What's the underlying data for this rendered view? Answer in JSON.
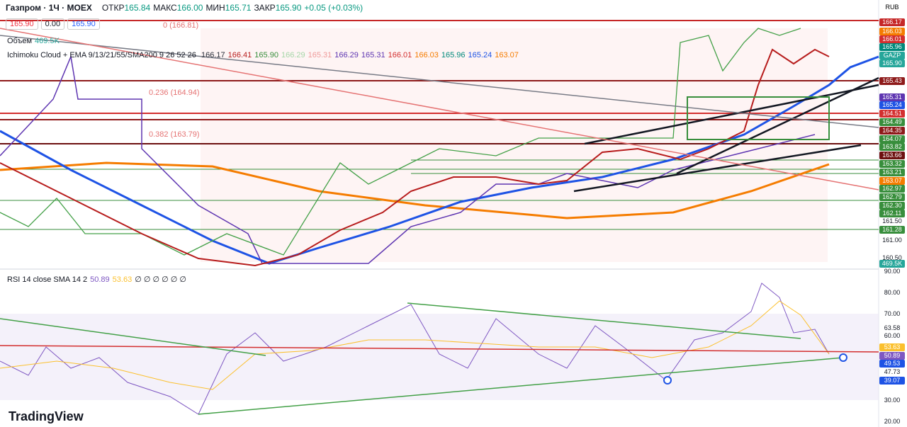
{
  "header": {
    "symbol": "Газпром · 1Ч · MOEX",
    "ohlc": [
      {
        "label": "ОТКР",
        "value": "165.84"
      },
      {
        "label": "МАКС",
        "value": "166.00"
      },
      {
        "label": "МИН",
        "value": "165.71"
      },
      {
        "label": "ЗАКР",
        "value": "165.90"
      }
    ],
    "change": "+0.05 (+0.03%)"
  },
  "order_boxes": [
    "165.90",
    "0.00",
    "165.90"
  ],
  "volume": {
    "label": "Объем",
    "value": "469.5K"
  },
  "ichimoku": {
    "label": "Ichimoku Cloud + EMA 9/13/21/55/SMA200 9 26 52 26",
    "values": [
      {
        "text": "166.17",
        "color": "#2a2e39"
      },
      {
        "text": "166.41",
        "color": "#b71c1c"
      },
      {
        "text": "165.90",
        "color": "#388e3c"
      },
      {
        "text": "166.29",
        "color": "#a5d6a7"
      },
      {
        "text": "165.31",
        "color": "#ef9a9a"
      },
      {
        "text": "166.29",
        "color": "#5e35b1"
      },
      {
        "text": "165.31",
        "color": "#5e35b1"
      },
      {
        "text": "166.01",
        "color": "#d32f2f"
      },
      {
        "text": "166.03",
        "color": "#f57c00"
      },
      {
        "text": "165.96",
        "color": "#00897b"
      },
      {
        "text": "165.24",
        "color": "#1e53e5"
      },
      {
        "text": "163.07",
        "color": "#f57c00"
      }
    ]
  },
  "fib_labels": [
    "0 (166.81)",
    "0.236 (164.94)",
    "0.382 (163.79)"
  ],
  "price_axis": {
    "currency": "RUB",
    "labels": [
      {
        "text": "166.17",
        "color": "#c62828"
      },
      {
        "text": "166.03",
        "color": "#f57c00"
      },
      {
        "text": "166.01",
        "color": "#d32f2f"
      },
      {
        "text": "165.96",
        "color": "#00897b"
      },
      {
        "text": "GAZP",
        "color": "#26a69a"
      },
      {
        "text": "165.90",
        "color": "#26a69a"
      },
      {
        "text": "165.43",
        "color": "#8e1a1a"
      },
      {
        "text": "165.31",
        "color": "#5e35b1"
      },
      {
        "text": "165.24",
        "color": "#1e53e5"
      },
      {
        "text": "164.51",
        "color": "#d32f2f"
      },
      {
        "text": "164.49",
        "color": "#388e3c"
      },
      {
        "text": "164.35",
        "color": "#8e1a1a"
      },
      {
        "text": "164.07",
        "color": "#388e3c"
      },
      {
        "text": "163.82",
        "color": "#388e3c"
      },
      {
        "text": "163.66",
        "color": "#6d1010"
      },
      {
        "text": "163.32",
        "color": "#388e3c"
      },
      {
        "text": "163.21",
        "color": "#388e3c"
      },
      {
        "text": "163.07",
        "color": "#f57c00"
      },
      {
        "text": "162.97",
        "color": "#388e3c"
      },
      {
        "text": "162.79",
        "color": "#388e3c"
      },
      {
        "text": "162.30",
        "color": "#388e3c"
      },
      {
        "text": "162.11",
        "color": "#388e3c"
      },
      {
        "text": "161.50",
        "color": null
      },
      {
        "text": "161.28",
        "color": "#388e3c"
      },
      {
        "text": "161.00",
        "color": null
      },
      {
        "text": "160.50",
        "color": null
      },
      {
        "text": "469.5K",
        "color": "#26a69a"
      }
    ]
  },
  "rsi": {
    "label": "RSI 14 close SMA 14 2",
    "value": "50.89",
    "sma": "53.63",
    "empty": "∅ ∅ ∅ ∅ ∅ ∅"
  },
  "rsi_axis": {
    "labels": [
      {
        "text": "90.00",
        "color": null
      },
      {
        "text": "80.00",
        "color": null
      },
      {
        "text": "70.00",
        "color": null
      },
      {
        "text": "63.58",
        "color": null
      },
      {
        "text": "60.00",
        "color": null
      },
      {
        "text": "53.63",
        "color": "#fbc02d"
      },
      {
        "text": "50.89",
        "color": "#7e57c2"
      },
      {
        "text": "49.53",
        "color": "#1e53e5"
      },
      {
        "text": "47.73",
        "color": null
      },
      {
        "text": "39.07",
        "color": "#1e53e5"
      },
      {
        "text": "30.00",
        "color": null
      },
      {
        "text": "20.00",
        "color": null
      }
    ]
  },
  "brand": "TradingView"
}
